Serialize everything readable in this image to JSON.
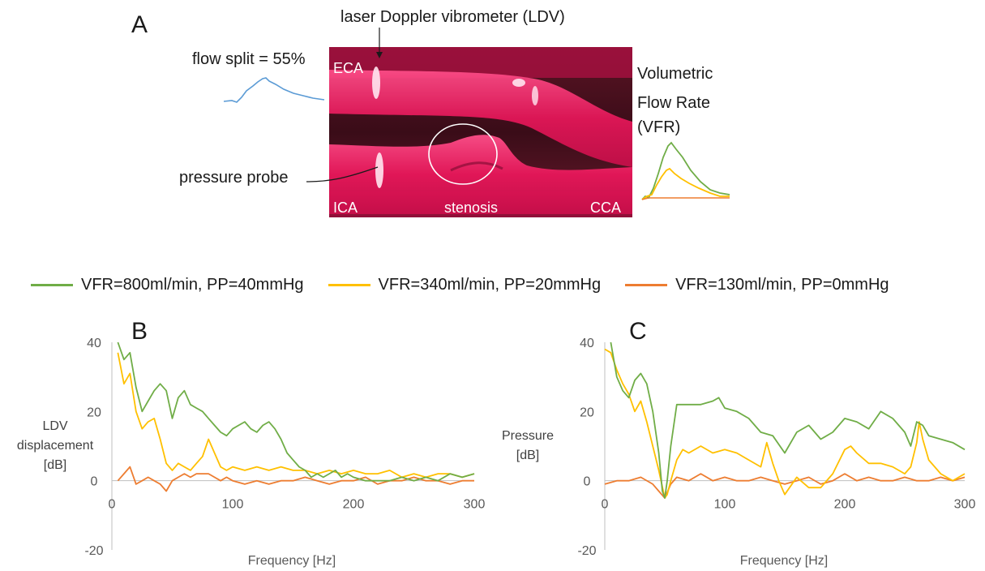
{
  "panel_a": {
    "letter": "A",
    "ldv_label": "laser Doppler vibrometer (LDV)",
    "flow_split_label": "flow split = 55%",
    "pressure_probe_label": "pressure probe",
    "vfr_label_lines": [
      "Volumetric",
      "Flow Rate",
      "(VFR)"
    ],
    "photo_labels": {
      "eca": "ECA",
      "ica": "ICA",
      "cca": "CCA",
      "stenosis": "stenosis"
    }
  },
  "legend": [
    {
      "name": "VFR=800ml/min, PP=40mmHg",
      "color": "#70ad47"
    },
    {
      "name": "VFR=340ml/min, PP=20mmHg",
      "color": "#ffc000"
    },
    {
      "name": "VFR=130ml/min, PP=0mmHg",
      "color": "#ed7d31"
    }
  ],
  "colors": {
    "green": "#70ad47",
    "yellow": "#ffc000",
    "orange": "#ed7d31",
    "flow_split": "#5b9bd5",
    "axis": "#bfbfbf"
  },
  "chart_data": [
    {
      "panel": "B",
      "type": "line",
      "xlabel": "Frequency [Hz]",
      "ylabel": "LDV displacement [dB]",
      "ylabel_lines": [
        "LDV",
        "displacement",
        "[dB]"
      ],
      "xlim": [
        0,
        300
      ],
      "ylim": [
        -20,
        40
      ],
      "xticks": [
        0,
        100,
        200,
        300
      ],
      "yticks": [
        -20,
        0,
        20,
        40
      ],
      "series": [
        {
          "name": "VFR=800ml/min, PP=40mmHg",
          "color": "#70ad47",
          "x": [
            5,
            10,
            15,
            20,
            25,
            30,
            35,
            40,
            45,
            50,
            55,
            60,
            65,
            70,
            75,
            80,
            85,
            90,
            95,
            100,
            105,
            110,
            115,
            120,
            125,
            130,
            135,
            140,
            145,
            150,
            155,
            160,
            165,
            170,
            175,
            180,
            185,
            190,
            195,
            200,
            210,
            220,
            230,
            240,
            250,
            260,
            270,
            280,
            290,
            300
          ],
          "y": [
            40,
            35,
            37,
            27,
            20,
            23,
            26,
            28,
            26,
            18,
            24,
            26,
            22,
            21,
            20,
            18,
            16,
            14,
            13,
            15,
            16,
            17,
            15,
            14,
            16,
            17,
            15,
            12,
            8,
            6,
            4,
            3,
            1,
            2,
            1,
            2,
            3,
            1,
            2,
            1,
            0,
            0,
            0,
            1,
            0,
            1,
            0,
            2,
            1,
            2
          ]
        },
        {
          "name": "VFR=340ml/min, PP=20mmHg",
          "color": "#ffc000",
          "x": [
            5,
            10,
            15,
            20,
            25,
            30,
            35,
            40,
            45,
            50,
            55,
            60,
            65,
            70,
            75,
            80,
            85,
            90,
            95,
            100,
            110,
            120,
            130,
            140,
            150,
            160,
            170,
            180,
            190,
            200,
            210,
            220,
            230,
            240,
            250,
            260,
            270,
            280,
            290,
            300
          ],
          "y": [
            37,
            28,
            31,
            20,
            15,
            17,
            18,
            12,
            5,
            3,
            5,
            4,
            3,
            5,
            7,
            12,
            8,
            4,
            3,
            4,
            3,
            4,
            3,
            4,
            3,
            3,
            2,
            3,
            2,
            3,
            2,
            2,
            3,
            1,
            2,
            1,
            2,
            2,
            1,
            2
          ]
        },
        {
          "name": "VFR=130ml/min, PP=0mmHg",
          "color": "#ed7d31",
          "x": [
            5,
            10,
            15,
            20,
            25,
            30,
            35,
            40,
            45,
            50,
            55,
            60,
            65,
            70,
            75,
            80,
            85,
            90,
            95,
            100,
            110,
            120,
            130,
            140,
            150,
            160,
            170,
            180,
            190,
            200,
            210,
            220,
            230,
            240,
            250,
            260,
            270,
            280,
            290,
            300
          ],
          "y": [
            0,
            2,
            4,
            -1,
            0,
            1,
            0,
            -1,
            -3,
            0,
            1,
            2,
            1,
            2,
            2,
            2,
            1,
            0,
            1,
            0,
            -1,
            0,
            -1,
            0,
            0,
            1,
            0,
            -1,
            0,
            0,
            1,
            -1,
            0,
            0,
            1,
            0,
            0,
            -1,
            0,
            0
          ]
        }
      ]
    },
    {
      "panel": "C",
      "type": "line",
      "xlabel": "Frequency [Hz]",
      "ylabel": "Pressure [dB]",
      "ylabel_lines": [
        "Pressure",
        "[dB]"
      ],
      "xlim": [
        0,
        300
      ],
      "ylim": [
        -20,
        40
      ],
      "xticks": [
        0,
        100,
        200,
        300
      ],
      "yticks": [
        -20,
        0,
        20,
        40
      ],
      "series": [
        {
          "name": "VFR=800ml/min, PP=40mmHg",
          "color": "#70ad47",
          "x": [
            5,
            10,
            15,
            20,
            25,
            30,
            35,
            40,
            45,
            48,
            50,
            52,
            55,
            60,
            70,
            80,
            90,
            95,
            100,
            110,
            120,
            130,
            140,
            150,
            160,
            170,
            180,
            190,
            200,
            210,
            220,
            230,
            240,
            250,
            255,
            260,
            265,
            270,
            280,
            290,
            300
          ],
          "y": [
            40,
            30,
            26,
            24,
            29,
            31,
            28,
            20,
            8,
            -3,
            -5,
            0,
            10,
            22,
            22,
            22,
            23,
            24,
            21,
            20,
            18,
            14,
            13,
            8,
            14,
            16,
            12,
            14,
            18,
            17,
            15,
            20,
            18,
            14,
            10,
            17,
            16,
            13,
            12,
            11,
            9
          ]
        },
        {
          "name": "VFR=340ml/min, PP=20mmHg",
          "color": "#ffc000",
          "x": [
            0,
            5,
            10,
            15,
            20,
            25,
            30,
            35,
            40,
            45,
            50,
            52,
            55,
            60,
            65,
            70,
            80,
            90,
            100,
            110,
            120,
            130,
            135,
            140,
            145,
            150,
            160,
            170,
            180,
            190,
            200,
            205,
            210,
            220,
            230,
            240,
            250,
            255,
            260,
            262,
            265,
            270,
            280,
            290,
            295,
            300
          ],
          "y": [
            38,
            37,
            32,
            28,
            25,
            20,
            23,
            17,
            10,
            3,
            -5,
            -4,
            0,
            6,
            9,
            8,
            10,
            8,
            9,
            8,
            6,
            4,
            11,
            5,
            0,
            -4,
            1,
            -2,
            -2,
            2,
            9,
            10,
            8,
            5,
            5,
            4,
            2,
            4,
            11,
            17,
            12,
            6,
            2,
            0,
            1,
            2
          ]
        },
        {
          "name": "VFR=130ml/min, PP=0mmHg",
          "color": "#ed7d31",
          "x": [
            0,
            10,
            20,
            30,
            40,
            45,
            50,
            55,
            60,
            70,
            80,
            90,
            100,
            110,
            120,
            130,
            140,
            150,
            160,
            170,
            180,
            190,
            200,
            210,
            220,
            230,
            240,
            250,
            260,
            270,
            280,
            290,
            300
          ],
          "y": [
            -1,
            0,
            0,
            1,
            -1,
            -3,
            -5,
            -1,
            1,
            0,
            2,
            0,
            1,
            0,
            0,
            1,
            0,
            -1,
            0,
            1,
            -1,
            0,
            2,
            0,
            1,
            0,
            0,
            1,
            0,
            0,
            1,
            0,
            1
          ]
        }
      ]
    }
  ]
}
